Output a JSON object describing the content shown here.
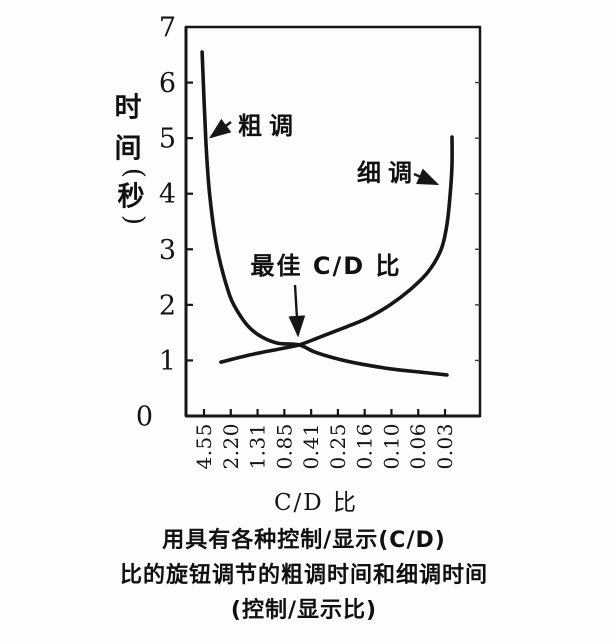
{
  "chart_data": {
    "type": "line",
    "title": "",
    "xlabel": "C/D 比",
    "ylabel": "时间(秒)",
    "ylabel_vertical_chars": [
      "时",
      "间",
      "(",
      "秒",
      ")"
    ],
    "x_tick_labels": [
      "4.55",
      "2.20",
      "1.31",
      "0.85",
      "0.41",
      "0.25",
      "0.16",
      "0.10",
      "0.06",
      "0.03"
    ],
    "x_axis_note": "C/D ratio decreases left to right; series x values are tick-index positions (0 = 4.55 ... 9 = 0.03)",
    "y_ticks": [
      0,
      1,
      2,
      3,
      4,
      5,
      6,
      7
    ],
    "ylim": [
      0,
      7
    ],
    "grid": false,
    "series": [
      {
        "name": "粗调",
        "points": [
          [
            -0.07,
            6.55
          ],
          [
            0.07,
            4.93
          ],
          [
            0.22,
            3.94
          ],
          [
            0.49,
            3.02
          ],
          [
            0.93,
            2.21
          ],
          [
            1.27,
            1.87
          ],
          [
            1.68,
            1.6
          ],
          [
            2.17,
            1.42
          ],
          [
            2.76,
            1.31
          ],
          [
            3.55,
            1.28
          ],
          [
            4.14,
            1.15
          ],
          [
            4.89,
            1.04
          ],
          [
            5.82,
            0.94
          ],
          [
            6.95,
            0.85
          ],
          [
            8.07,
            0.79
          ],
          [
            9.07,
            0.74
          ]
        ]
      },
      {
        "name": "细调",
        "points": [
          [
            0.63,
            0.97
          ],
          [
            1.72,
            1.1
          ],
          [
            2.65,
            1.19
          ],
          [
            3.55,
            1.28
          ],
          [
            4.33,
            1.42
          ],
          [
            5.19,
            1.58
          ],
          [
            6.09,
            1.76
          ],
          [
            6.95,
            2.0
          ],
          [
            7.69,
            2.27
          ],
          [
            8.36,
            2.59
          ],
          [
            8.85,
            2.99
          ],
          [
            9.07,
            3.44
          ],
          [
            9.19,
            3.98
          ],
          [
            9.26,
            4.52
          ],
          [
            9.26,
            5.02
          ]
        ]
      }
    ],
    "annotations": [
      {
        "text": "粗调",
        "target_series": "粗调",
        "arrow_points_to_seconds": 5.0
      },
      {
        "text": "细调",
        "target_series": "细调",
        "arrow_points_to_seconds": 4.15
      },
      {
        "text": "最佳 C/D 比",
        "arrow_points_to": "intersection",
        "intersection": {
          "x_index": 3.55,
          "seconds": 1.28
        }
      }
    ]
  },
  "labels": {
    "coarse": "粗调",
    "fine": "细调",
    "optimal": "最佳 C/D 比",
    "x_axis": "C/D 比"
  },
  "caption": {
    "line1": "用具有各种控制/显示(C/D)",
    "line2": "比的旋钮调节的粗调时间和细调时间",
    "line3": "(控制/显示比)"
  },
  "colors": {
    "ink": "#161616",
    "paper": "#fdfdfb"
  }
}
